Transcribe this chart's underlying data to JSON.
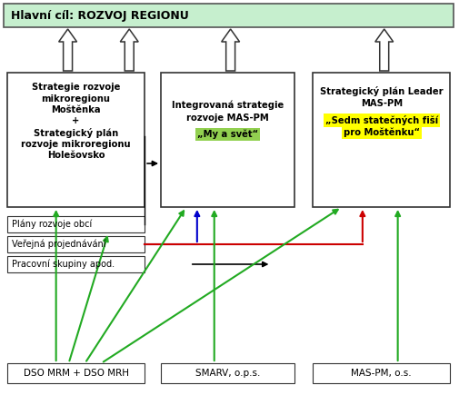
{
  "title_box": "Hlavní cíl: ROZVOJ REGIONU",
  "title_bg": "#c6efce",
  "title_border": "#555555",
  "box1_lines": [
    "Strategie rozvoje",
    "mikroregionu",
    "Moštěnka",
    "+",
    "Strategický plán",
    "rozvoje mikroregionu",
    "Holešovsko"
  ],
  "box2_lines": [
    "Integrovaná strategie",
    "rozvoje MAS-PM",
    "„My a svět“"
  ],
  "box3_lines": [
    "Strategický plán Leader",
    "MAS-PM",
    "„Sedm statečných fiší",
    "pro Moštěnku“"
  ],
  "left_labels": [
    "Plány rozvoje obcí",
    "Veřejná projednávání",
    "Pracovní skupiny apod."
  ],
  "bottom_labels": [
    "DSO MRM + DSO MRH",
    "SMARV, o.p.s.",
    "MAS-PM, o.s."
  ],
  "green": "#22aa22",
  "blue": "#0000cc",
  "red": "#cc0000",
  "black": "#000000",
  "yellow_highlight": "#ffff00",
  "green_highlight": "#92d050",
  "fig_w": 5.06,
  "fig_h": 4.46,
  "dpi": 100
}
